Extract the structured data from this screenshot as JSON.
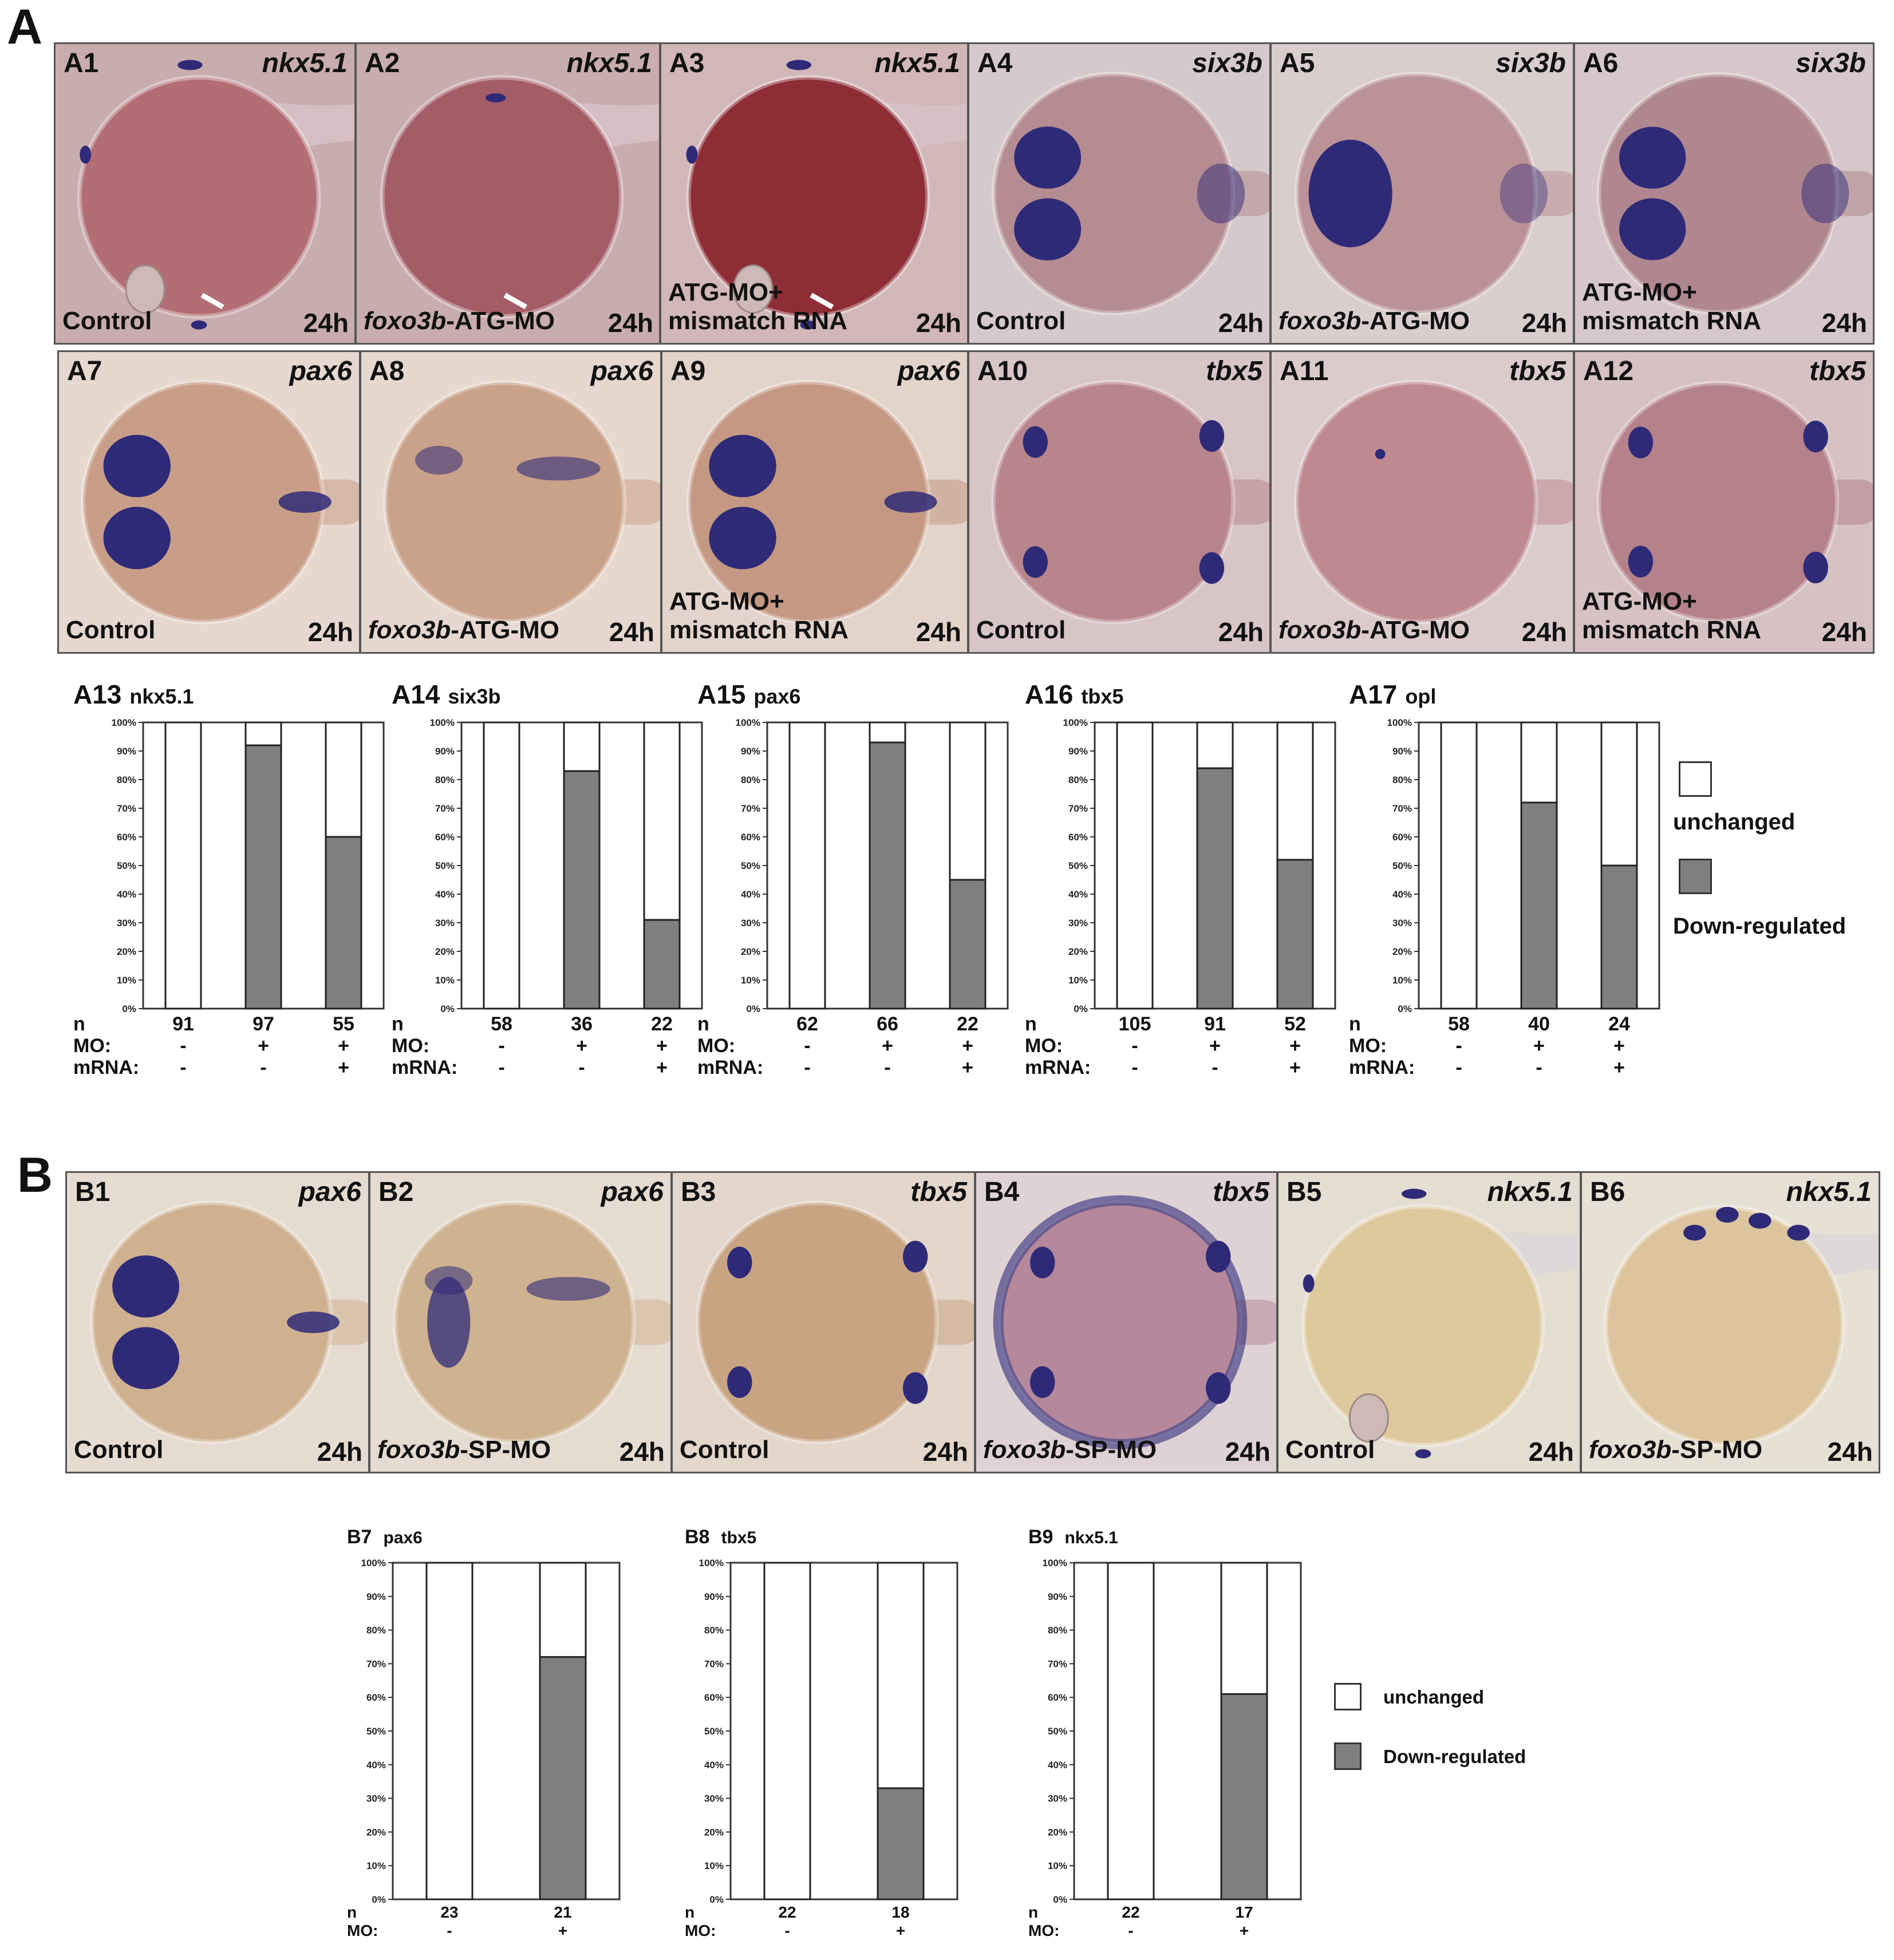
{
  "sections": {
    "a": "A",
    "b": "B"
  },
  "panels_a": [
    {
      "label": "A1",
      "gene": "nkx5.1",
      "cond_lines": [
        "Control"
      ],
      "italic_prefix": "",
      "time": "24h",
      "arrow": true,
      "view": "lateral",
      "bg": "#c9adae",
      "yolk": "#b26e74",
      "stain": "spots"
    },
    {
      "label": "A2",
      "gene": "nkx5.1",
      "cond_lines": [
        "-ATG-MO"
      ],
      "italic_prefix": "foxo3b",
      "time": "24h",
      "arrow": true,
      "view": "lateral",
      "bg": "#c9adae",
      "yolk": "#a45d66",
      "stain": "few"
    },
    {
      "label": "A3",
      "gene": "nkx5.1",
      "cond_lines": [
        "ATG-MO+",
        "mismatch RNA"
      ],
      "italic_prefix": "",
      "time": "24h",
      "arrow": true,
      "view": "lateral",
      "bg": "#d2b7b8",
      "yolk": "#8e2d35",
      "stain": "spots"
    },
    {
      "label": "A4",
      "gene": "six3b",
      "cond_lines": [
        "Control"
      ],
      "italic_prefix": "",
      "time": "24h",
      "arrow": false,
      "view": "dorsal-eyes",
      "bg": "#d6c9cb",
      "yolk": "#b58c92",
      "stain": "eyes"
    },
    {
      "label": "A5",
      "gene": "six3b",
      "cond_lines": [
        "-ATG-MO"
      ],
      "italic_prefix": "foxo3b",
      "time": "24h",
      "arrow": false,
      "view": "dorsal-eyes",
      "bg": "#d9cdce",
      "yolk": "#bb9298",
      "stain": "blob"
    },
    {
      "label": "A6",
      "gene": "six3b",
      "cond_lines": [
        "ATG-MO+",
        "mismatch RNA"
      ],
      "italic_prefix": "",
      "time": "24h",
      "arrow": false,
      "view": "dorsal-eyes",
      "bg": "#d6c8ca",
      "yolk": "#b08790",
      "stain": "eyes"
    },
    {
      "label": "A7",
      "gene": "pax6",
      "cond_lines": [
        "Control"
      ],
      "italic_prefix": "",
      "time": "24h",
      "arrow": false,
      "view": "dorsal",
      "bg": "#e6d8cf",
      "yolk": "#c99e88",
      "stain": "eyes-stripe"
    },
    {
      "label": "A8",
      "gene": "pax6",
      "cond_lines": [
        "-ATG-MO"
      ],
      "italic_prefix": "foxo3b",
      "time": "24h",
      "arrow": false,
      "view": "dorsal",
      "bg": "#e6d8cf",
      "yolk": "#caa28a",
      "stain": "faint-stripe"
    },
    {
      "label": "A9",
      "gene": "pax6",
      "cond_lines": [
        "ATG-MO+",
        "mismatch RNA"
      ],
      "italic_prefix": "",
      "time": "24h",
      "arrow": false,
      "view": "dorsal",
      "bg": "#e3d4cb",
      "yolk": "#c49883",
      "stain": "eyes-stripe"
    },
    {
      "label": "A10",
      "gene": "tbx5",
      "cond_lines": [
        "Control"
      ],
      "italic_prefix": "",
      "time": "24h",
      "arrow": false,
      "view": "dorsal-fins",
      "bg": "#d8c5c7",
      "yolk": "#b9858c",
      "stain": "fins"
    },
    {
      "label": "A11",
      "gene": "tbx5",
      "cond_lines": [
        "-ATG-MO"
      ],
      "italic_prefix": "foxo3b",
      "time": "24h",
      "arrow": false,
      "view": "dorsal-fins",
      "bg": "#dccbcc",
      "yolk": "#bf8a8f",
      "stain": "dot"
    },
    {
      "label": "A12",
      "gene": "tbx5",
      "cond_lines": [
        "ATG-MO+",
        "mismatch RNA"
      ],
      "italic_prefix": "",
      "time": "24h",
      "arrow": false,
      "view": "dorsal-fins",
      "bg": "#d6c2c4",
      "yolk": "#b5818a",
      "stain": "fins"
    }
  ],
  "panels_b": [
    {
      "label": "B1",
      "gene": "pax6",
      "cond_lines": [
        "Control"
      ],
      "italic_prefix": "",
      "time": "24h",
      "arrow": false,
      "view": "dorsal",
      "bg": "#e6dbd0",
      "yolk": "#cfb190",
      "stain": "eyes-stripe"
    },
    {
      "label": "B2",
      "gene": "pax6",
      "cond_lines": [
        "-SP-MO"
      ],
      "italic_prefix": "foxo3b",
      "time": "24h",
      "arrow": false,
      "view": "dorsal",
      "bg": "#e6dbd0",
      "yolk": "#cfb391",
      "stain": "stripe-eye"
    },
    {
      "label": "B3",
      "gene": "tbx5",
      "cond_lines": [
        "Control"
      ],
      "italic_prefix": "",
      "time": "24h",
      "arrow": false,
      "view": "dorsal-fins",
      "bg": "#e3d6cb",
      "yolk": "#c8a483",
      "stain": "fins"
    },
    {
      "label": "B4",
      "gene": "tbx5",
      "cond_lines": [
        "-SP-MO"
      ],
      "italic_prefix": "foxo3b",
      "time": "24h",
      "arrow": false,
      "view": "dorsal-fins",
      "bg": "#dfd2d5",
      "yolk": "#b5899b",
      "stain": "ring"
    },
    {
      "label": "B5",
      "gene": "nkx5.1",
      "cond_lines": [
        "Control"
      ],
      "italic_prefix": "",
      "time": "24h",
      "arrow": false,
      "view": "lateral",
      "bg": "#e4ddd2",
      "yolk": "#dec99e",
      "stain": "spots"
    },
    {
      "label": "B6",
      "gene": "nkx5.1",
      "cond_lines": [
        "-SP-MO"
      ],
      "italic_prefix": "foxo3b",
      "time": "24h",
      "arrow": false,
      "view": "lateral",
      "bg": "#e7e0d5",
      "yolk": "#dcc59e",
      "stain": "spots-top"
    }
  ],
  "charts_a": [
    {
      "id": "A13",
      "gene": "nkx5.1",
      "n": [
        "91",
        "97",
        "55"
      ],
      "mo": [
        "-",
        "+",
        "+"
      ],
      "mrna": [
        "-",
        "-",
        "+"
      ],
      "down": [
        0,
        92,
        60
      ]
    },
    {
      "id": "A14",
      "gene": "six3b",
      "n": [
        "58",
        "36",
        "22"
      ],
      "mo": [
        "-",
        "+",
        "+"
      ],
      "mrna": [
        "-",
        "-",
        "+"
      ],
      "down": [
        0,
        83,
        31
      ]
    },
    {
      "id": "A15",
      "gene": "pax6",
      "n": [
        "62",
        "66",
        "22"
      ],
      "mo": [
        "-",
        "+",
        "+"
      ],
      "mrna": [
        "-",
        "-",
        "+"
      ],
      "down": [
        0,
        93,
        45
      ]
    },
    {
      "id": "A16",
      "gene": "tbx5",
      "n": [
        "105",
        "91",
        "52"
      ],
      "mo": [
        "-",
        "+",
        "+"
      ],
      "mrna": [
        "-",
        "-",
        "+"
      ],
      "down": [
        0,
        84,
        52
      ]
    },
    {
      "id": "A17",
      "gene": "opl",
      "n": [
        "58",
        "40",
        "24"
      ],
      "mo": [
        "-",
        "+",
        "+"
      ],
      "mrna": [
        "-",
        "-",
        "+"
      ],
      "down": [
        0,
        72,
        50
      ]
    }
  ],
  "charts_b": [
    {
      "id": "B7",
      "gene": "pax6",
      "n": [
        "23",
        "21"
      ],
      "mo": [
        "-",
        "+"
      ],
      "down": [
        0,
        72
      ]
    },
    {
      "id": "B8",
      "gene": "tbx5",
      "n": [
        "22",
        "18"
      ],
      "mo": [
        "-",
        "+"
      ],
      "down": [
        0,
        33
      ]
    },
    {
      "id": "B9",
      "gene": "nkx5.1",
      "n": [
        "22",
        "17"
      ],
      "mo": [
        "-",
        "+"
      ],
      "down": [
        0,
        61
      ]
    }
  ],
  "row_labels": {
    "n": "n",
    "mo": "MO:",
    "mrna": "mRNA:"
  },
  "y_ticks": [
    "0%",
    "10%",
    "20%",
    "30%",
    "40%",
    "50%",
    "60%",
    "70%",
    "80%",
    "90%",
    "100%"
  ],
  "legend": {
    "unchanged": "unchanged",
    "down": "Down-regulated"
  },
  "colors": {
    "down": "#7f7f7f",
    "unchanged": "#ffffff",
    "stain": "#2f2a78"
  },
  "chart_data": [
    {
      "type": "bar",
      "stacked": true,
      "title": "A13 nkx5.1",
      "categories": [
        "91",
        "97",
        "55"
      ],
      "series": [
        {
          "name": "unchanged",
          "values": [
            100,
            8,
            40
          ]
        },
        {
          "name": "Down-regulated",
          "values": [
            0,
            92,
            60
          ]
        }
      ],
      "ylim": [
        0,
        100
      ]
    },
    {
      "type": "bar",
      "stacked": true,
      "title": "A14 six3b",
      "categories": [
        "58",
        "36",
        "22"
      ],
      "series": [
        {
          "name": "unchanged",
          "values": [
            100,
            17,
            69
          ]
        },
        {
          "name": "Down-regulated",
          "values": [
            0,
            83,
            31
          ]
        }
      ],
      "ylim": [
        0,
        100
      ]
    },
    {
      "type": "bar",
      "stacked": true,
      "title": "A15 pax6",
      "categories": [
        "62",
        "66",
        "22"
      ],
      "series": [
        {
          "name": "unchanged",
          "values": [
            100,
            7,
            55
          ]
        },
        {
          "name": "Down-regulated",
          "values": [
            0,
            93,
            45
          ]
        }
      ],
      "ylim": [
        0,
        100
      ]
    },
    {
      "type": "bar",
      "stacked": true,
      "title": "A16 tbx5",
      "categories": [
        "105",
        "91",
        "52"
      ],
      "series": [
        {
          "name": "unchanged",
          "values": [
            100,
            16,
            48
          ]
        },
        {
          "name": "Down-regulated",
          "values": [
            0,
            84,
            52
          ]
        }
      ],
      "ylim": [
        0,
        100
      ]
    },
    {
      "type": "bar",
      "stacked": true,
      "title": "A17 opl",
      "categories": [
        "58",
        "40",
        "24"
      ],
      "series": [
        {
          "name": "unchanged",
          "values": [
            100,
            28,
            50
          ]
        },
        {
          "name": "Down-regulated",
          "values": [
            0,
            72,
            50
          ]
        }
      ],
      "ylim": [
        0,
        100
      ]
    },
    {
      "type": "bar",
      "stacked": true,
      "title": "B7 pax6",
      "categories": [
        "23",
        "21"
      ],
      "series": [
        {
          "name": "unchanged",
          "values": [
            100,
            28
          ]
        },
        {
          "name": "Down-regulated",
          "values": [
            0,
            72
          ]
        }
      ],
      "ylim": [
        0,
        100
      ]
    },
    {
      "type": "bar",
      "stacked": true,
      "title": "B8 tbx5",
      "categories": [
        "22",
        "18"
      ],
      "series": [
        {
          "name": "unchanged",
          "values": [
            100,
            67
          ]
        },
        {
          "name": "Down-regulated",
          "values": [
            0,
            33
          ]
        }
      ],
      "ylim": [
        0,
        100
      ]
    },
    {
      "type": "bar",
      "stacked": true,
      "title": "B9 nkx5.1",
      "categories": [
        "22",
        "17"
      ],
      "series": [
        {
          "name": "unchanged",
          "values": [
            100,
            39
          ]
        },
        {
          "name": "Down-regulated",
          "values": [
            0,
            61
          ]
        }
      ],
      "ylim": [
        0,
        100
      ]
    }
  ]
}
